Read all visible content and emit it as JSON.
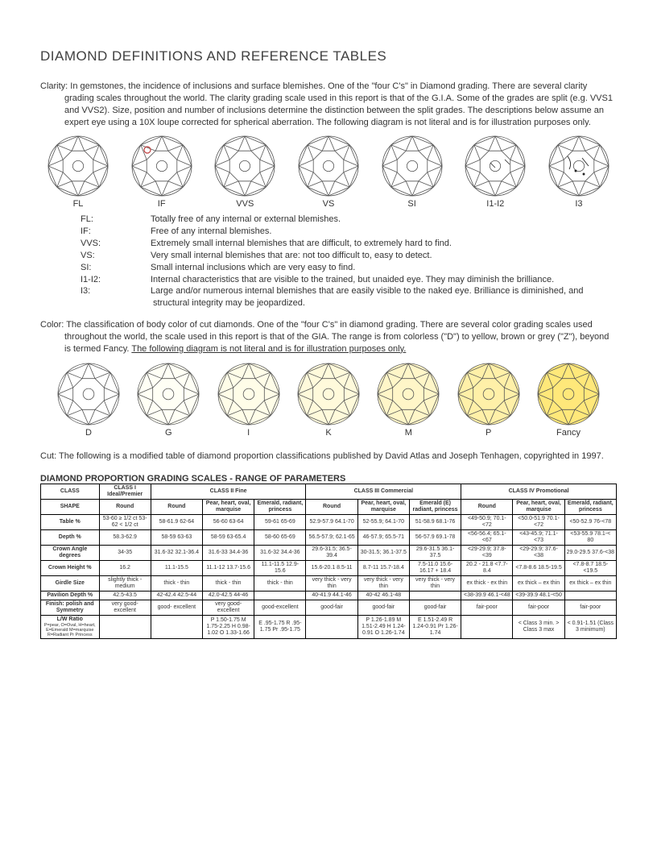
{
  "title": "DIAMOND DEFINITIONS AND REFERENCE TABLES",
  "clarity": {
    "heading": "Clarity:  In gemstones, the incidence of inclusions and surface blemishes. One of the \"four C's\" in Diamond grading. There are several clarity grading scales throughout the world. The clarity grading scale used in this report is that of the G.I.A. Some of the  grades are split (e.g. VVS1 and VVS2). Size, position and number of inclusions determine the distinction between the split  grades. The descriptions below assume an expert eye using a 10X loupe corrected for spherical aberration. The following  diagram is not literal and is for illustration purposes only.",
    "labels": [
      "FL",
      "IF",
      "VVS",
      "VS",
      "SI",
      "I1-I2",
      "I3"
    ],
    "defs": [
      {
        "c": "FL:",
        "t": "Totally free of any internal or external blemishes."
      },
      {
        "c": "IF:",
        "t": "Free of any internal blemishes."
      },
      {
        "c": "VVS:",
        "t": "Extremely small internal blemishes that are difficult, to extremely hard to find."
      },
      {
        "c": "VS:",
        "t": "Very small internal blemishes that are: not too difficult to, easy to detect."
      },
      {
        "c": "SI:",
        "t": "Small internal inclusions which are very easy to find."
      },
      {
        "c": "I1-I2:",
        "t": "Internal characteristics that are visible to the trained, but unaided eye. They may diminish the brilliance."
      },
      {
        "c": "I3:",
        "t": "Large and/or numerous internal blemishes that are easily visible to the naked eye. Brilliance is diminished,   and structural integrity may be jeopardized."
      }
    ]
  },
  "color": {
    "heading_a": "Color:  The classification of body color of cut diamonds. One of the \"four C's\" in diamond grading. There are several color grading  scales used throughout the world, the scale used in this report is that of the GIA. The range is from colorless (\"D\") to yellow,  brown or grey (\"Z\"), beyond is termed Fancy. ",
    "heading_u": "The following diagram is not literal and is for illustration purposes only.",
    "labels": [
      "D",
      "G",
      "I",
      "K",
      "M",
      "P",
      "Fancy"
    ],
    "fills": [
      "#ffffff",
      "#fffff5",
      "#fffde8",
      "#fffadb",
      "#fff6c8",
      "#fff0a8",
      "#ffe87a"
    ]
  },
  "cut": {
    "heading": "Cut:  The following is a modified table of diamond proportion classifications published by David Atlas and Joseph Tenhagen, copyrighted in 1997."
  },
  "table": {
    "title": "DIAMOND PROPORTION GRADING SCALES - RANGE OF PARAMETERS",
    "class_headers": [
      "CLASS",
      "CLASS I Ideal/Premier",
      "CLASS II Fine",
      "CLASS III Commercial",
      "CLASS IV Promotional"
    ],
    "shape_row": [
      "SHAPE",
      "Round",
      "Round",
      "Pear, heart, oval, marquise",
      "Emerald, radiant, princess",
      "Round",
      "Pear, heart, oval, marquise",
      "Emerald (E) radiant, princess",
      "Round",
      "Pear, heart, oval, marquise",
      "Emerald, radiant, princess"
    ],
    "rows": [
      {
        "h": "Table %",
        "c": [
          "53-60 ≥ 1/2 ct 53-62 < 1/2 ct",
          "58-61.9 62-64",
          "56-60 63-64",
          "59-61 65-69",
          "52.9-57.9 64.1-70",
          "52-55.9; 64.1-70",
          "51-58.9 68.1-76",
          "<49-50.9; 70.1-<72",
          "<50.0-51.9 70.1-<72",
          "<50-52.9 76-<78"
        ]
      },
      {
        "h": "Depth %",
        "c": [
          "58.3-62.9",
          "58-59 63-63",
          "58-59 63-65.4",
          "58-60 65-69",
          "56.5-57.9; 62.1-65",
          "46-57.9; 65.5-71",
          "56-57.9 69.1-78",
          "<56-56.4; 65.1-<67",
          "<43-45.9; 71.1-<73",
          "<53-55.9 78.1-< 80"
        ]
      },
      {
        "h": "Crown Angle degrees",
        "c": [
          "34-35",
          "31.6-32 32.1-36.4",
          "31.6-33 34.4-36",
          "31.6-32 34.4-36",
          "29.6-31.5; 36.5-39.4",
          "30-31.5; 36.1-37.5",
          "29.6-31.5 36.1-37.5",
          "<29-29.9; 37.8-<39",
          "<29-29.9; 37.6-<38",
          "29.0-29.5 37.6-<38"
        ]
      },
      {
        "h": "Crown Height %",
        "c": [
          "16.2",
          "11.1-15.5",
          "11.1-12 13.7-15.6",
          "11.1-11.5 12.9-15.6",
          "15.6-20.1 8.5-11",
          "8.7-11 15.7-18.4",
          "7.5-11.0 15.6-16.17 + 18.4",
          "20.2 - 21.8 <7.7-8.4",
          "<7.8-8.6 18.5-19.5",
          "<7.8-8.7 18.5-<19.5"
        ]
      },
      {
        "h": "Girdle Size",
        "c": [
          "slightly thick - medium",
          "thick - thin",
          "thick - thin",
          "thick - thin",
          "very thick - very thin",
          "very thick - very thin",
          "very thick - very thin",
          "ex thick - ex thin",
          "ex thick – ex thin",
          "ex thick – ex thin"
        ]
      },
      {
        "h": "Pavilion Depth %",
        "c": [
          "42.5-43.5",
          "42-42.4 42.5-44",
          "42.0-42.5 44-46",
          "",
          "40-41.9 44.1-46",
          "40-42 46.1-48",
          "",
          "<38-39.9 46.1-<48",
          "<39-39.9 48.1-<50",
          ""
        ]
      },
      {
        "h": "Finish: polish and Symmetry",
        "c": [
          "very good- excellent",
          "good- excellent",
          "very good- excellent",
          "good-excellent",
          "good-fair",
          "good-fair",
          "good-fair",
          "fair-poor",
          "fair-poor",
          "fair-poor"
        ]
      },
      {
        "h": "L/W Ratio",
        "sub": "P=pear, O=Oval, H=heart, E=Emerald M=marquise R=Radiant Pr Princess",
        "c": [
          "",
          "",
          "P 1.50-1.75 M 1.75-2.25 H 0.98-1.02 O 1.33-1.66",
          "E .95-1.75 R .95-1.75 Pr .95-1.75",
          "",
          "P 1.26-1.89 M 1.51-2.49 H 1.24-0.91 O 1.26-1.74",
          "E 1.51-2.49 R 1.24-0.91 Pr 1.26-1.74",
          "",
          "< Class 3 min. > Class 3 max",
          "< 0.91-1.51 (Class 3 minimum)"
        ]
      }
    ]
  },
  "style": {
    "diamond_stroke": "#555555",
    "diamond_size": 78,
    "color_diamond_size": 80,
    "red_circle": "#c04040"
  }
}
